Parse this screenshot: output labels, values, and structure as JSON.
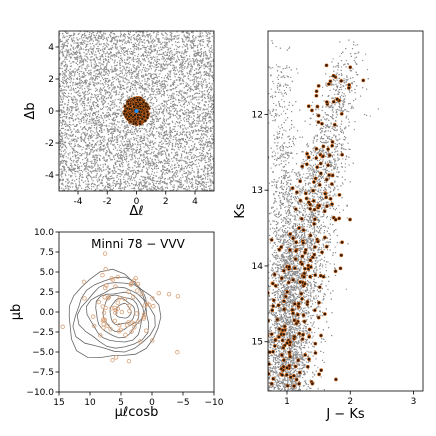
{
  "chart_data": [
    {
      "type": "scatter",
      "xlabel": "Δℓ",
      "ylabel": "Δb",
      "xlim": [
        -5.3,
        5.3
      ],
      "ylim": [
        -5.0,
        5.0
      ],
      "xticks": [
        -4,
        -2,
        0,
        2,
        4
      ],
      "yticks": [
        -4,
        -2,
        0,
        2,
        4
      ],
      "series": [
        {
          "role": "field",
          "color": "#8c8c8c",
          "distribution": "uniform",
          "count": 6000
        },
        {
          "role": "cluster members",
          "color": "#2b1a0a",
          "edge": "#d2691e",
          "center": [
            0,
            0
          ],
          "radius": 0.85
        },
        {
          "role": "cluster center",
          "color": "#1e90ff",
          "x": 0,
          "y": 0
        }
      ]
    },
    {
      "type": "scatter",
      "title": "Minni 78 − VVV",
      "xlabel": "μℓcosb",
      "ylabel": "μb",
      "xlim": [
        15,
        -10
      ],
      "ylim": [
        -10,
        10
      ],
      "xticks": [
        15,
        10,
        5,
        0,
        -5,
        -10
      ],
      "yticks": [
        10.0,
        7.5,
        5.0,
        2.5,
        0.0,
        -2.5,
        -5.0,
        -7.5,
        -10.0
      ],
      "xticklabels": [
        "15",
        "10",
        "5",
        "0",
        "−5",
        "−10"
      ],
      "yticklabels": [
        "10.0",
        "7.5",
        "5.0",
        "2.5",
        "0.0",
        "−2.5",
        "−5.0",
        "−7.5",
        "−10.0"
      ],
      "series": [
        {
          "role": "members",
          "color": "#d9a278",
          "center": [
            4.6,
            0.1
          ],
          "count": 80
        },
        {
          "role": "density contours",
          "color": "#666666",
          "center": [
            4.6,
            0.1
          ],
          "radii": [
            [
              1.2,
              0.9
            ],
            [
              2.0,
              1.6
            ],
            [
              2.9,
              2.2
            ],
            [
              3.8,
              2.8
            ],
            [
              4.6,
              3.4
            ],
            [
              5.6,
              4.1
            ],
            [
              6.4,
              4.6
            ],
            [
              7.4,
              5.4
            ]
          ]
        }
      ]
    },
    {
      "type": "scatter",
      "xlabel": "J − Ks",
      "ylabel": "Ks",
      "xlim": [
        0.7,
        3.15
      ],
      "ylim": [
        15.65,
        10.9
      ],
      "yinverted": true,
      "xticks": [
        1,
        2,
        3
      ],
      "yticks": [
        12,
        13,
        14,
        15
      ],
      "series": [
        {
          "role": "field",
          "color": "#8c8c8c",
          "count": 9000
        },
        {
          "role": "cluster members",
          "color": "#2b1a0a",
          "edge": "#e07020",
          "count": 260
        }
      ]
    }
  ]
}
